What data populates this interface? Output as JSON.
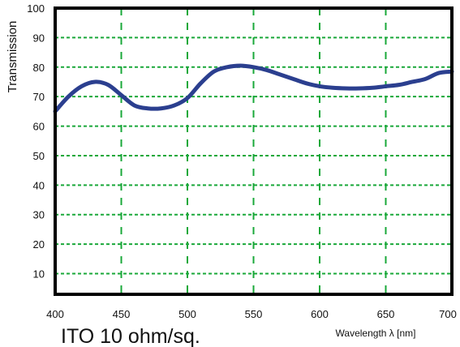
{
  "colors": {
    "grid": "#1aa83a",
    "line": "#2b3f8f",
    "frame": "#000000"
  },
  "caption": "ITO 10 ohm/sq.",
  "chart_data": {
    "type": "line",
    "title": "",
    "xlabel": "Wavelength λ [nm]",
    "ylabel": "Transmission",
    "xlim": [
      400,
      700
    ],
    "ylim": [
      3,
      100
    ],
    "grid": true,
    "x_ticks": [
      400,
      450,
      500,
      550,
      600,
      650,
      700
    ],
    "y_ticks": [
      10,
      20,
      30,
      40,
      50,
      60,
      70,
      80,
      90,
      100
    ],
    "series": [
      {
        "x": [
          400,
          410,
          420,
          430,
          440,
          450,
          460,
          470,
          480,
          490,
          500,
          510,
          520,
          530,
          540,
          550,
          560,
          570,
          580,
          590,
          600,
          610,
          620,
          630,
          640,
          650,
          660,
          670,
          680,
          690,
          700
        ],
        "y": [
          65,
          70,
          73.5,
          75,
          74,
          70.5,
          67,
          66,
          66,
          67,
          69.5,
          74.5,
          78.5,
          80,
          80.5,
          80,
          79,
          77.5,
          76,
          74.5,
          73.5,
          73,
          72.8,
          72.8,
          73,
          73.5,
          74,
          75,
          76,
          78,
          78.5
        ]
      }
    ]
  }
}
